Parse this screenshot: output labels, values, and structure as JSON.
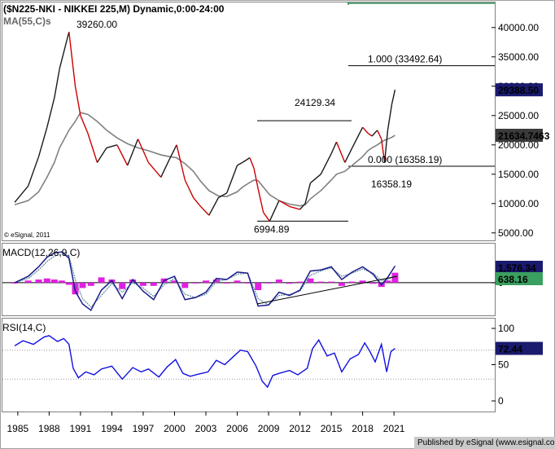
{
  "title": "($N225-NKI - NIKKEI 225,M) Dynamic,0:00-24:00",
  "ma_label": "MA(55,C)s",
  "watermark": "© eSignal, 2011",
  "published": "Published by eSignal (www.esignal.com)",
  "colors": {
    "up": "#1a1a1a",
    "down": "#cc0000",
    "ma": "#808080",
    "macd": "#1a1a8c",
    "signal": "#5a8a9a",
    "hist": "#e020e0",
    "rsi": "#1010e0",
    "last_price_bg": "#1a1a6e",
    "ma_badge_bg": "#3a3a3a",
    "macd_badge_bg": "#1a1a6e",
    "signal_badge_bg": "#3aa060",
    "rsi_badge_bg": "#1a1a6e",
    "target_line": "#2e8b57"
  },
  "chart_data": [
    {
      "type": "line",
      "panel": "price",
      "title": "($N225-NKI - NIKKEI 225,M) Dynamic,0:00-24:00",
      "x": [
        1984.7,
        1986,
        1987,
        1987.8,
        1988.5,
        1989,
        1989.9,
        1990.5,
        1991,
        1991.7,
        1992.6,
        1993.5,
        1994.5,
        1995.5,
        1996.5,
        1997.5,
        1998.7,
        1999.5,
        2000.2,
        2001,
        2001.8,
        2002.5,
        2003.3,
        2004.2,
        2005,
        2006,
        2006.5,
        2007.2,
        2007.6,
        2008,
        2008.5,
        2009.1,
        2010,
        2011,
        2012,
        2012.5,
        2013,
        2014,
        2015,
        2015.5,
        2016.3,
        2017,
        2018,
        2018.5,
        2018.9,
        2019.4,
        2019.8,
        2020.1,
        2020.4,
        2020.8,
        2021.1
      ],
      "series": [
        {
          "name": "NIKKEI 225",
          "values": [
            10200,
            13000,
            18000,
            23000,
            28000,
            33000,
            39260,
            30000,
            25000,
            22000,
            17000,
            19500,
            20000,
            16500,
            21000,
            17000,
            14500,
            17500,
            20000,
            14000,
            11000,
            9500,
            8000,
            11000,
            11800,
            16500,
            17000,
            17800,
            16000,
            12500,
            8500,
            6994.89,
            10500,
            9500,
            9000,
            10000,
            13500,
            15000,
            18500,
            20500,
            17000,
            19500,
            23000,
            22000,
            21500,
            22500,
            21000,
            17000,
            22500,
            27000,
            29388.5
          ]
        },
        {
          "name": "MA(55,C)s",
          "values": [
            9800,
            10500,
            12000,
            14500,
            17000,
            19500,
            22500,
            24000,
            25500,
            25200,
            24000,
            22500,
            21200,
            20200,
            19500,
            19000,
            18300,
            18000,
            17800,
            16800,
            15500,
            13800,
            12200,
            11300,
            11200,
            12000,
            12800,
            13600,
            14000,
            13900,
            12800,
            11500,
            10500,
            9900,
            9600,
            9800,
            10800,
            12200,
            14000,
            15000,
            15500,
            16500,
            18000,
            19000,
            19500,
            20000,
            20500,
            20800,
            21000,
            21300,
            21634.7463
          ]
        }
      ],
      "ylim": [
        4000,
        44000
      ],
      "yticks": [
        5000,
        10000,
        15000,
        20000,
        25000,
        30000,
        35000,
        40000
      ],
      "ytick_labels": [
        "5000.00",
        "10000.00",
        "15000.00",
        "20000.00",
        "25000.00",
        "30000.00",
        "35000.00",
        "40000.00"
      ],
      "annotations": [
        {
          "text": "39260.00",
          "value": 39260
        },
        {
          "text": "24129.34",
          "value": 24129.34
        },
        {
          "text": "6994.89",
          "value": 6994.89
        },
        {
          "text": "16358.19",
          "value": 16358.19
        },
        {
          "text": "1.000 (33492.64)",
          "value": 33492.64
        },
        {
          "text": "0.000 (16358.19)",
          "value": 16358.19
        }
      ],
      "last_price": "29388.50",
      "ma_value": "21634.7463"
    },
    {
      "type": "line",
      "panel": "macd",
      "title": "MACD(12,26,9,C)",
      "x": [
        1984.7,
        1986,
        1987,
        1987.8,
        1988.5,
        1989.2,
        1989.9,
        1990.5,
        1991.2,
        1992,
        1993,
        1994,
        1995,
        1996,
        1997,
        1998,
        1999,
        2000,
        2001,
        2002,
        2003,
        2004,
        2005,
        2006,
        2007,
        2008,
        2009,
        2010,
        2011,
        2012,
        2013,
        2014,
        2015,
        2016,
        2017,
        2018,
        2019,
        2019.8,
        2020.4,
        2021.1
      ],
      "series": [
        {
          "name": "MACD",
          "values": [
            0,
            600,
            1500,
            2400,
            2800,
            2900,
            2300,
            -800,
            -2000,
            -2600,
            -700,
            200,
            -1500,
            300,
            -800,
            -1600,
            200,
            600,
            -1600,
            -1400,
            -900,
            400,
            300,
            1000,
            900,
            -2200,
            -2100,
            -900,
            -1200,
            -700,
            1100,
            1200,
            1500,
            300,
            1000,
            1500,
            800,
            -200,
            500,
            1576.34
          ]
        },
        {
          "name": "Signal",
          "values": [
            0,
            400,
            1200,
            2000,
            2500,
            2700,
            2500,
            300,
            -1500,
            -2300,
            -1200,
            -100,
            -900,
            0,
            -500,
            -1300,
            -200,
            400,
            -1100,
            -1400,
            -1100,
            100,
            300,
            800,
            900,
            -1500,
            -2100,
            -1200,
            -1100,
            -800,
            700,
            1100,
            1400,
            600,
            900,
            1300,
            900,
            200,
            300,
            638.16
          ]
        },
        {
          "name": "Histogram",
          "values": [
            0,
            200,
            300,
            400,
            300,
            200,
            -200,
            -1100,
            -500,
            -300,
            500,
            300,
            -600,
            300,
            -300,
            -300,
            400,
            200,
            -500,
            0,
            200,
            300,
            0,
            200,
            0,
            -700,
            0,
            300,
            -100,
            100,
            400,
            100,
            100,
            -300,
            100,
            200,
            -100,
            -400,
            200,
            938
          ]
        }
      ],
      "ylim": [
        -3000,
        3600
      ],
      "yticks": [
        0
      ],
      "ytick_labels": [
        "0"
      ],
      "trendline": {
        "from": [
          2007.9,
          -2000
        ],
        "to": [
          2021.3,
          600
        ]
      },
      "last_macd": "1,576.34",
      "last_signal": "638.16"
    },
    {
      "type": "line",
      "panel": "rsi",
      "title": "RSI(14,C)",
      "x": [
        1984.7,
        1985.5,
        1986.5,
        1987.5,
        1988,
        1988.8,
        1989.4,
        1989.9,
        1990.3,
        1990.8,
        1991.5,
        1992.3,
        1993,
        1994,
        1995,
        1996,
        1996.8,
        1997.5,
        1998.5,
        1999.3,
        2000.1,
        2000.8,
        2001.5,
        2002.3,
        2003.2,
        2004,
        2004.8,
        2005.7,
        2006.3,
        2007,
        2007.8,
        2008.4,
        2008.9,
        2009.4,
        2010,
        2011,
        2011.8,
        2012.7,
        2013.2,
        2013.8,
        2014.6,
        2015.3,
        2016,
        2016.8,
        2017.6,
        2018.2,
        2018.7,
        2019.2,
        2019.8,
        2020.3,
        2020.7,
        2021.1
      ],
      "series": [
        {
          "name": "RSI",
          "values": [
            76,
            83,
            78,
            88,
            90,
            82,
            86,
            78,
            45,
            32,
            40,
            36,
            44,
            48,
            30,
            46,
            40,
            44,
            33,
            47,
            57,
            38,
            34,
            37,
            40,
            56,
            50,
            62,
            70,
            68,
            48,
            27,
            19,
            35,
            38,
            42,
            36,
            45,
            72,
            84,
            62,
            66,
            40,
            58,
            64,
            80,
            68,
            54,
            78,
            40,
            68,
            72.44
          ]
        }
      ],
      "ylim": [
        0,
        100
      ],
      "yticks": [
        0,
        50,
        100
      ],
      "ytick_labels": [
        "0",
        "50",
        "100"
      ],
      "levels": [
        70,
        30
      ],
      "last_rsi": "72.44"
    }
  ],
  "x_axis": {
    "years": [
      1985,
      1988,
      1991,
      1994,
      1997,
      2000,
      2003,
      2006,
      2009,
      2012,
      2015,
      2018,
      2021
    ],
    "labels": [
      "1985",
      "1988",
      "1991",
      "1994",
      "1997",
      "2000",
      "2003",
      "2006",
      "2009",
      "2012",
      "2015",
      "2018",
      "2021"
    ]
  }
}
